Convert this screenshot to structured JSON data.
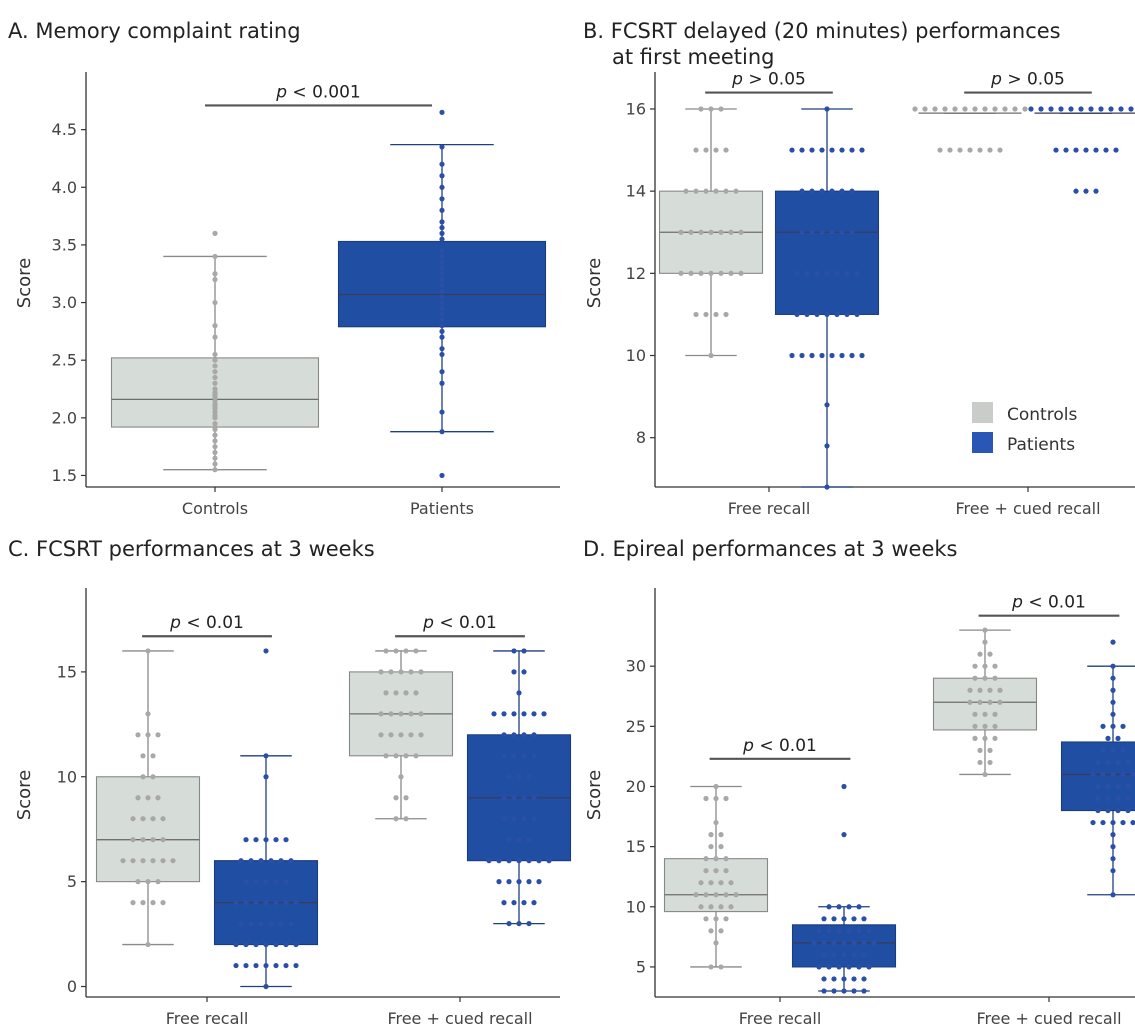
{
  "colors": {
    "controls_fill": "#d6dcd7",
    "controls_edge": "#888888",
    "controls_point": "#a8a8a8",
    "patients_fill": "#1f4ea3",
    "patients_edge": "#1a3d80",
    "patients_point": "#2a4fa8",
    "axis": "#333333"
  },
  "legend": {
    "controls": "Controls",
    "patients": "Patients"
  },
  "chart_data": [
    {
      "type": "box",
      "title": "A. Memory complaint rating",
      "title2": "",
      "ylabel": "Score",
      "ylim": [
        1.4,
        5.0
      ],
      "yticks": [
        1.5,
        2.0,
        2.5,
        3.0,
        3.5,
        4.0,
        4.5
      ],
      "ytick_labels": [
        "1.5",
        "2.0",
        "2.5",
        "3.0",
        "3.5",
        "4.0",
        "4.5"
      ],
      "categories": [
        "Controls",
        "Patients"
      ],
      "boxes": [
        {
          "group": "Controls",
          "category": 0,
          "offset": 0,
          "min": 1.55,
          "q1": 1.92,
          "median": 2.16,
          "q3": 2.52,
          "max": 3.4,
          "points": [
            1.55,
            1.6,
            1.65,
            1.7,
            1.75,
            1.8,
            1.85,
            1.9,
            1.92,
            1.95,
            2.0,
            2.02,
            2.05,
            2.08,
            2.1,
            2.12,
            2.15,
            2.18,
            2.2,
            2.22,
            2.25,
            2.3,
            2.35,
            2.4,
            2.45,
            2.5,
            2.55,
            2.7,
            2.8,
            3.0,
            3.2,
            3.25,
            3.4,
            3.6
          ]
        },
        {
          "group": "Patients",
          "category": 1,
          "offset": 0,
          "min": 1.88,
          "q1": 2.79,
          "median": 3.07,
          "q3": 3.53,
          "max": 4.37,
          "points": [
            1.5,
            1.88,
            2.05,
            2.3,
            2.4,
            2.55,
            2.6,
            2.7,
            2.75,
            2.8,
            2.85,
            2.9,
            2.95,
            3.0,
            3.05,
            3.1,
            3.15,
            3.2,
            3.25,
            3.3,
            3.35,
            3.4,
            3.45,
            3.55,
            3.6,
            3.65,
            3.7,
            3.8,
            3.9,
            4.0,
            4.1,
            4.2,
            4.35,
            4.65
          ]
        }
      ],
      "pvalues": [
        {
          "label": "p < 0.001",
          "from": 0,
          "to": 1,
          "y": 4.71
        }
      ],
      "legend": false
    },
    {
      "type": "box",
      "title": "B. FCSRT delayed (20 minutes) performances",
      "title2": "at first meeting",
      "ylabel": "Score",
      "ylim": [
        6.8,
        16.9
      ],
      "yticks": [
        8,
        10,
        12,
        14,
        16
      ],
      "ytick_labels": [
        "8",
        "10",
        "12",
        "14",
        "16"
      ],
      "categories": [
        "Free recall",
        "Free + cued recall"
      ],
      "boxes": [
        {
          "group": "Controls",
          "category": 0,
          "offset": -1,
          "min": 10,
          "q1": 12,
          "median": 13,
          "q3": 14,
          "max": 16,
          "points": [
            10,
            11,
            11,
            11,
            11,
            12,
            12,
            12,
            12,
            12,
            12,
            12,
            13,
            13,
            13,
            13,
            13,
            13,
            13,
            14,
            14,
            14,
            14,
            14,
            14,
            15,
            15,
            15,
            15,
            16,
            16,
            16
          ]
        },
        {
          "group": "Patients",
          "category": 0,
          "offset": 1,
          "min": 6.8,
          "q1": 11,
          "median": 13,
          "q3": 14,
          "max": 16,
          "points": [
            6.8,
            7.8,
            8.8,
            10,
            10,
            10,
            10,
            10,
            10,
            10,
            10,
            11,
            11,
            11,
            11,
            11,
            11,
            11,
            12,
            12,
            12,
            12,
            12,
            12,
            12,
            13,
            13,
            13,
            13,
            13,
            13,
            14,
            14,
            14,
            14,
            14,
            14,
            15,
            15,
            15,
            15,
            15,
            15,
            15,
            15,
            16
          ]
        },
        {
          "group": "Controls",
          "category": 1,
          "offset": -1,
          "min": 15.9,
          "q1": 15.9,
          "median": 15.9,
          "q3": 15.9,
          "max": 15.9,
          "points": [
            15,
            15,
            15,
            15,
            15,
            15,
            15,
            16,
            16,
            16,
            16,
            16,
            16,
            16,
            16,
            16,
            16,
            16,
            16
          ]
        },
        {
          "group": "Patients",
          "category": 1,
          "offset": 1,
          "min": 15.9,
          "q1": 15.9,
          "median": 15.9,
          "q3": 15.9,
          "max": 15.9,
          "points": [
            14,
            14,
            14,
            15,
            15,
            15,
            15,
            15,
            15,
            15,
            16,
            16,
            16,
            16,
            16,
            16,
            16,
            16,
            16,
            16,
            16,
            16
          ]
        }
      ],
      "pvalues": [
        {
          "label": "p > 0.05",
          "from": -0.5,
          "to": 0.5,
          "category": 0,
          "y": 16.4
        },
        {
          "label": "p > 0.05",
          "from": -0.5,
          "to": 0.5,
          "category": 1,
          "y": 16.4
        }
      ],
      "legend": true
    },
    {
      "type": "box",
      "title": "C. FCSRT performances at 3 weeks",
      "title2": "",
      "ylabel": "Score",
      "ylim": [
        -0.5,
        19
      ],
      "yticks": [
        0,
        5,
        10,
        15
      ],
      "ytick_labels": [
        "0",
        "5",
        "10",
        "15"
      ],
      "categories": [
        "Free recall",
        "Free + cued recall"
      ],
      "boxes": [
        {
          "group": "Controls",
          "category": 0,
          "offset": -1,
          "min": 2,
          "q1": 5,
          "median": 7,
          "q3": 10,
          "max": 16,
          "points": [
            2,
            4,
            4,
            4,
            4,
            5,
            5,
            5,
            6,
            6,
            6,
            6,
            6,
            6,
            7,
            7,
            7,
            7,
            8,
            8,
            8,
            8,
            9,
            9,
            9,
            10,
            10,
            11,
            11,
            12,
            12,
            12,
            13,
            16
          ]
        },
        {
          "group": "Patients",
          "category": 0,
          "offset": 1,
          "min": 0,
          "q1": 2,
          "median": 4,
          "q3": 6,
          "max": 11,
          "points": [
            0,
            1,
            1,
            1,
            1,
            1,
            1,
            1,
            2,
            2,
            2,
            2,
            2,
            2,
            2,
            3,
            3,
            3,
            3,
            3,
            3,
            4,
            4,
            4,
            4,
            4,
            4,
            4,
            5,
            5,
            5,
            5,
            5,
            6,
            6,
            6,
            6,
            6,
            6,
            7,
            7,
            7,
            7,
            7,
            10,
            11,
            16
          ]
        },
        {
          "group": "Controls",
          "category": 1,
          "offset": -1,
          "min": 8,
          "q1": 11,
          "median": 13,
          "q3": 15,
          "max": 16,
          "points": [
            8,
            8,
            9,
            9,
            10,
            11,
            11,
            11,
            11,
            12,
            12,
            12,
            12,
            12,
            13,
            13,
            13,
            13,
            13,
            14,
            14,
            14,
            14,
            15,
            15,
            15,
            15,
            15,
            16,
            16,
            16,
            16
          ]
        },
        {
          "group": "Patients",
          "category": 1,
          "offset": 1,
          "min": 3,
          "q1": 6,
          "median": 9,
          "q3": 12,
          "max": 16,
          "points": [
            3,
            3,
            3,
            4,
            4,
            4,
            4,
            5,
            5,
            5,
            5,
            5,
            6,
            6,
            6,
            6,
            6,
            6,
            6,
            7,
            7,
            7,
            8,
            8,
            8,
            8,
            9,
            9,
            9,
            9,
            10,
            10,
            10,
            11,
            11,
            11,
            11,
            12,
            12,
            12,
            12,
            13,
            13,
            13,
            13,
            13,
            13,
            14,
            15,
            15,
            16,
            16
          ]
        }
      ],
      "pvalues": [
        {
          "label": "p < 0.01",
          "from": -0.5,
          "to": 0.5,
          "category": 0,
          "y": 16.7
        },
        {
          "label": "p < 0.01",
          "from": -0.5,
          "to": 0.5,
          "category": 1,
          "y": 16.7
        }
      ],
      "legend": false
    },
    {
      "type": "box",
      "title": "D. Epireal performances at 3 weeks",
      "title2": "",
      "ylabel": "Score",
      "ylim": [
        2.5,
        36.5
      ],
      "yticks": [
        5,
        10,
        15,
        20,
        25,
        30
      ],
      "ytick_labels": [
        "5",
        "10",
        "15",
        "20",
        "25",
        "30"
      ],
      "categories": [
        "Free recall",
        "Free + cued recall"
      ],
      "boxes": [
        {
          "group": "Controls",
          "category": 0,
          "offset": -1,
          "min": 5,
          "q1": 9.6,
          "median": 11,
          "q3": 14,
          "max": 20,
          "points": [
            5,
            5,
            7,
            8,
            8,
            9,
            9,
            9,
            10,
            10,
            10,
            10,
            11,
            11,
            11,
            11,
            11,
            12,
            12,
            12,
            12,
            13,
            13,
            13,
            14,
            14,
            14,
            15,
            15,
            16,
            16,
            17,
            19,
            19,
            19,
            20
          ]
        },
        {
          "group": "Patients",
          "category": 0,
          "offset": 1,
          "min": 3,
          "q1": 5,
          "median": 7,
          "q3": 8.5,
          "max": 10,
          "points": [
            3,
            3,
            3,
            3,
            3,
            4,
            4,
            4,
            4,
            4,
            5,
            5,
            5,
            5,
            5,
            5,
            6,
            6,
            6,
            6,
            6,
            7,
            7,
            7,
            7,
            7,
            7,
            7,
            8,
            8,
            8,
            8,
            8,
            8,
            9,
            9,
            9,
            9,
            9,
            10,
            10,
            10,
            10,
            16,
            20
          ]
        },
        {
          "group": "Controls",
          "category": 1,
          "offset": -1,
          "min": 21,
          "q1": 24.7,
          "median": 27,
          "q3": 29,
          "max": 33,
          "points": [
            21,
            22,
            22,
            23,
            23,
            24,
            24,
            24,
            25,
            25,
            25,
            26,
            26,
            26,
            27,
            27,
            27,
            27,
            28,
            28,
            28,
            28,
            29,
            29,
            29,
            30,
            30,
            30,
            31,
            31,
            32,
            33
          ]
        },
        {
          "group": "Patients",
          "category": 1,
          "offset": 1,
          "min": 11,
          "q1": 18,
          "median": 21,
          "q3": 23.7,
          "max": 30,
          "points": [
            11,
            13,
            14,
            15,
            16,
            17,
            17,
            17,
            17,
            17,
            18,
            18,
            18,
            18,
            19,
            19,
            19,
            19,
            20,
            20,
            20,
            20,
            21,
            21,
            21,
            21,
            21,
            22,
            22,
            22,
            22,
            23,
            23,
            23,
            24,
            24,
            25,
            25,
            25,
            26,
            27,
            28,
            29,
            30,
            32
          ]
        }
      ],
      "pvalues": [
        {
          "label": "p < 0.01",
          "from": -0.5,
          "to": 0.5,
          "category": 0,
          "y": 22.3
        },
        {
          "label": "p < 0.01",
          "from": -0.5,
          "to": 0.5,
          "category": 1,
          "y": 34.2
        }
      ],
      "legend": false
    }
  ]
}
